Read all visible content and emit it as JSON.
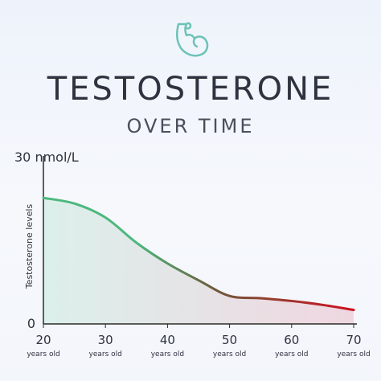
{
  "header": {
    "title": "TESTOSTERONE",
    "subtitle": "OVER TIME",
    "logo_icon": "flexed-bicep-icon",
    "logo_color": "#6cc3b6"
  },
  "chart_data": {
    "type": "area",
    "title": "TESTOSTERONE",
    "subtitle": "OVER TIME",
    "ylabel": "Testosterone levels",
    "xlabel": "",
    "x": [
      20,
      25,
      30,
      35,
      40,
      45,
      50,
      55,
      60,
      65,
      70
    ],
    "values": [
      22.5,
      21.5,
      19.0,
      14.5,
      10.8,
      7.8,
      5.0,
      4.6,
      4.1,
      3.4,
      2.5
    ],
    "xlim": [
      20,
      70
    ],
    "ylim": [
      0,
      30
    ],
    "x_ticks": [
      20,
      30,
      40,
      50,
      60,
      70
    ],
    "x_tick_sublabel": "years old",
    "y_ticks": [
      {
        "value": 0,
        "label": "0"
      },
      {
        "value": 30,
        "label": "30 nmol/L"
      }
    ],
    "grid": false,
    "legend": "none",
    "colors": {
      "line_start": "#4cb87d",
      "line_end": "#cf1020",
      "fill_start": "#d9efe9",
      "fill_end": "#efd3dd",
      "axis": "#2b2b2b",
      "text": "#2f3340"
    }
  }
}
